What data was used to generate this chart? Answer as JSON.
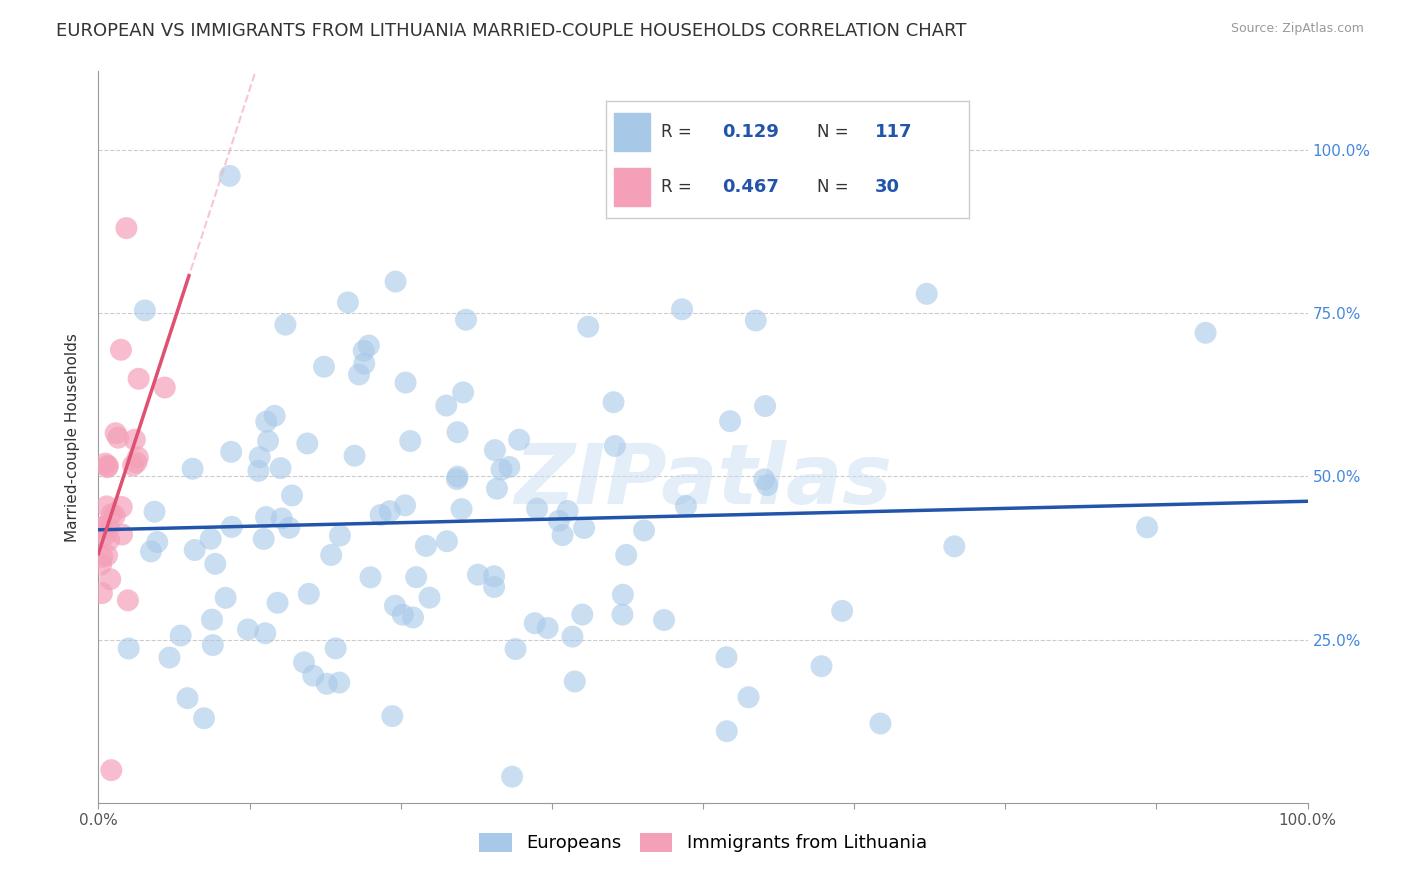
{
  "title": "EUROPEAN VS IMMIGRANTS FROM LITHUANIA MARRIED-COUPLE HOUSEHOLDS CORRELATION CHART",
  "source": "Source: ZipAtlas.com",
  "ylabel": "Married-couple Households",
  "blue_R": 0.129,
  "blue_N": 117,
  "pink_R": 0.467,
  "pink_N": 30,
  "blue_color": "#a8c8e8",
  "blue_line_color": "#2255aa",
  "pink_color": "#f4a0b8",
  "pink_line_color": "#e05070",
  "pink_dash_color": "#f0b0c0",
  "legend_label_blue": "Europeans",
  "legend_label_pink": "Immigrants from Lithuania",
  "watermark": "ZIPatlas",
  "background_color": "#ffffff",
  "title_fontsize": 13,
  "axis_label_fontsize": 11,
  "tick_fontsize": 11,
  "legend_fontsize": 13,
  "right_tick_color": "#4488dd",
  "grid_color": "#cccccc"
}
